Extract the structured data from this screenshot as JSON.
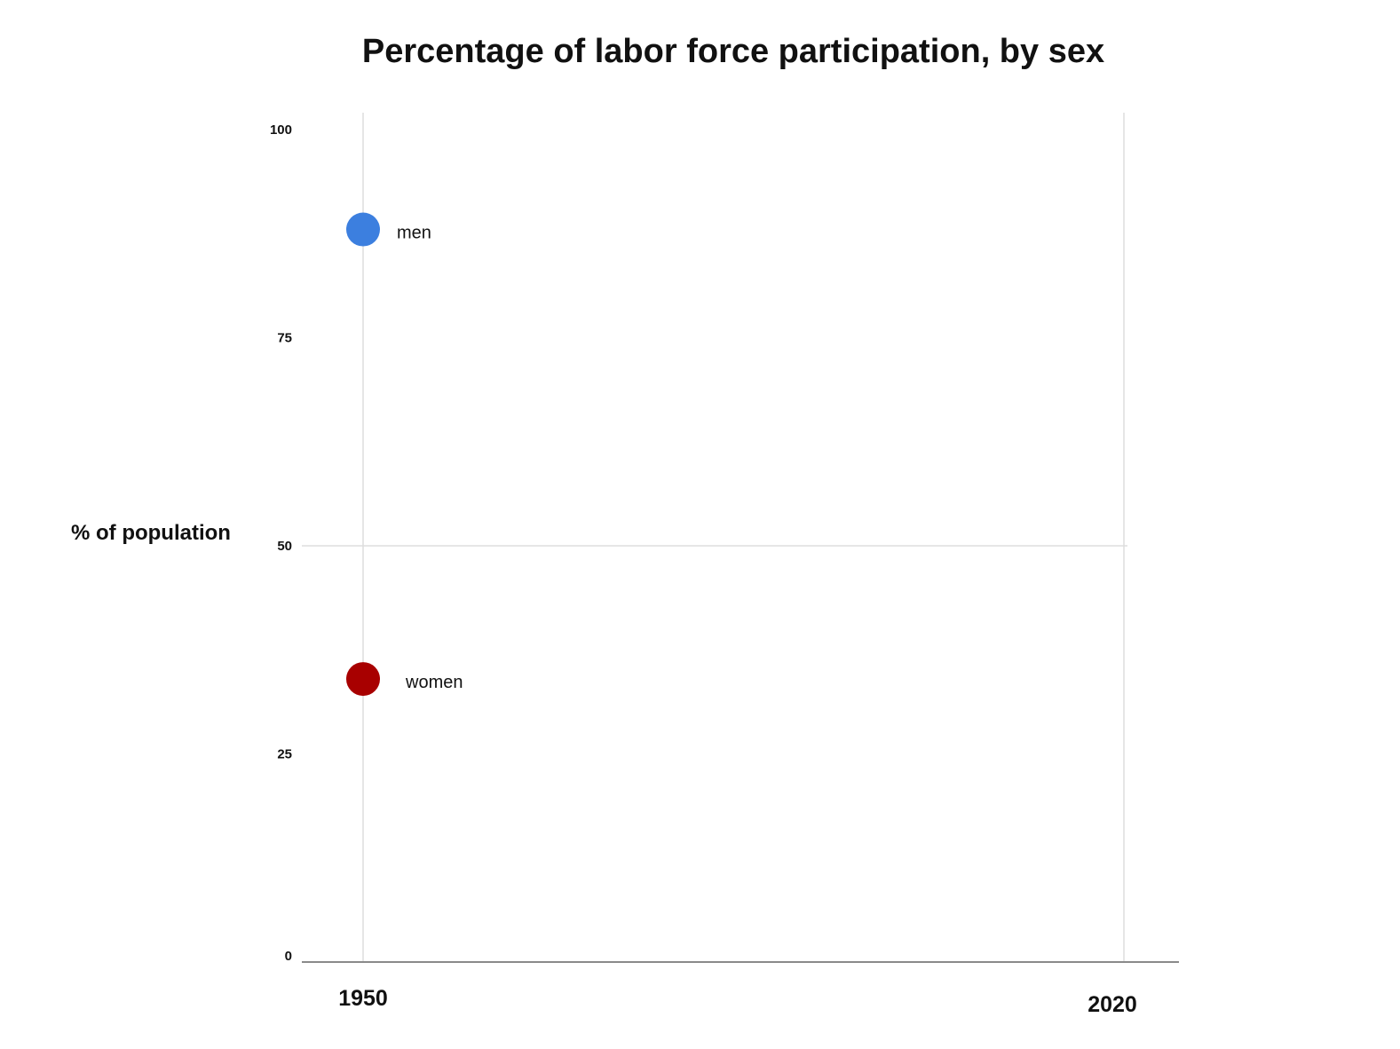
{
  "chart_data": {
    "type": "scatter",
    "title": "Percentage of labor force participation, by sex",
    "xlabel": "",
    "ylabel": "% of population",
    "x_ticks": [
      "1950",
      "2020"
    ],
    "y_ticks": [
      "0",
      "25",
      "50",
      "75",
      "100"
    ],
    "ylim": [
      0,
      100
    ],
    "xlim": [
      1950,
      2020
    ],
    "grid": "vertical lines at 1950 and 2020, horizontal line at 50",
    "series": [
      {
        "name": "men",
        "x": [
          1950
        ],
        "values": [
          88
        ],
        "color": "#3c7fdf"
      },
      {
        "name": "women",
        "x": [
          1950
        ],
        "values": [
          34
        ],
        "color": "#a80000"
      }
    ]
  }
}
